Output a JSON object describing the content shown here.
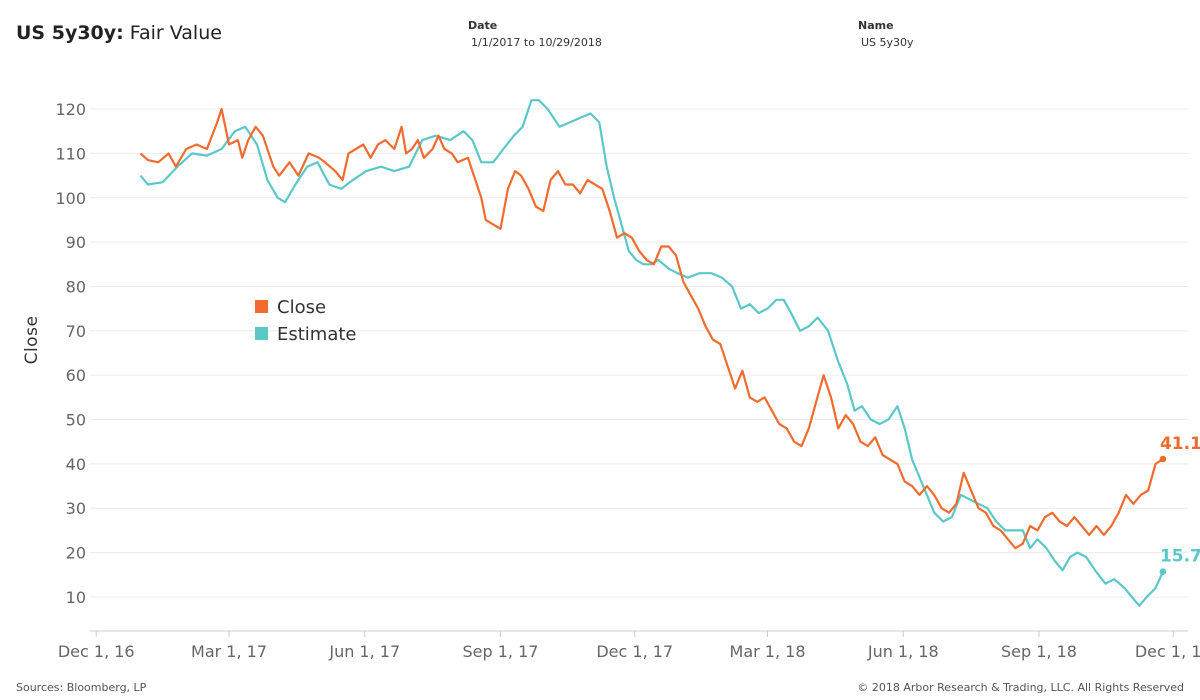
{
  "header": {
    "title_bold": "US 5y30y:",
    "title_rest": " Fair Value",
    "date_filter": {
      "label": "Date",
      "value": "1/1/2017 to 10/29/2018"
    },
    "name_filter": {
      "label": "Name",
      "value": "US 5y30y"
    }
  },
  "footer": {
    "sources": "Sources: Bloomberg, LP",
    "copyright": "© 2018 Arbor Research & Trading, LLC. All Rights Reserved"
  },
  "colors": {
    "close": "#F26B2E",
    "estimate": "#5BC8C8",
    "grid": "#ececec",
    "axis": "#cccccc"
  },
  "chart_data": {
    "type": "line",
    "title": "",
    "xlabel": "",
    "ylabel": "Close",
    "ylim": [
      3,
      127
    ],
    "xlim": [
      "2016-11-20",
      "2018-12-11"
    ],
    "yticks": [
      10,
      20,
      30,
      40,
      50,
      60,
      70,
      80,
      90,
      100,
      110,
      120
    ],
    "xticks": [
      {
        "date": "2016-12-01",
        "label": "Dec 1, 16"
      },
      {
        "date": "2017-03-01",
        "label": "Mar 1, 17"
      },
      {
        "date": "2017-06-01",
        "label": "Jun 1, 17"
      },
      {
        "date": "2017-09-01",
        "label": "Sep 1, 17"
      },
      {
        "date": "2017-12-01",
        "label": "Dec 1, 17"
      },
      {
        "date": "2018-03-01",
        "label": "Mar 1, 18"
      },
      {
        "date": "2018-06-01",
        "label": "Jun 1, 18"
      },
      {
        "date": "2018-09-01",
        "label": "Sep 1, 18"
      },
      {
        "date": "2018-12-01",
        "label": "Dec 1, 18"
      }
    ],
    "legend_position": "left-middle",
    "grid": true,
    "series": [
      {
        "name": "Close",
        "color": "#F26B2E",
        "end_label": "41.1",
        "points": [
          [
            "2016-12-31",
            110
          ],
          [
            "2017-01-05",
            108.5
          ],
          [
            "2017-01-12",
            108
          ],
          [
            "2017-01-19",
            110
          ],
          [
            "2017-01-24",
            107
          ],
          [
            "2017-01-31",
            111
          ],
          [
            "2017-02-07",
            112
          ],
          [
            "2017-02-14",
            111
          ],
          [
            "2017-02-21",
            117
          ],
          [
            "2017-02-24",
            120
          ],
          [
            "2017-03-01",
            112
          ],
          [
            "2017-03-07",
            113
          ],
          [
            "2017-03-10",
            109
          ],
          [
            "2017-03-14",
            113
          ],
          [
            "2017-03-19",
            116
          ],
          [
            "2017-03-24",
            114
          ],
          [
            "2017-03-31",
            107
          ],
          [
            "2017-04-04",
            105
          ],
          [
            "2017-04-11",
            108
          ],
          [
            "2017-04-17",
            105
          ],
          [
            "2017-04-24",
            110
          ],
          [
            "2017-05-01",
            109
          ],
          [
            "2017-05-05",
            108
          ],
          [
            "2017-05-12",
            106
          ],
          [
            "2017-05-17",
            104
          ],
          [
            "2017-05-21",
            110
          ],
          [
            "2017-05-26",
            111
          ],
          [
            "2017-05-31",
            112
          ],
          [
            "2017-06-05",
            109
          ],
          [
            "2017-06-10",
            112
          ],
          [
            "2017-06-15",
            113
          ],
          [
            "2017-06-21",
            111
          ],
          [
            "2017-06-26",
            116
          ],
          [
            "2017-06-29",
            110
          ],
          [
            "2017-07-03",
            111
          ],
          [
            "2017-07-07",
            113
          ],
          [
            "2017-07-11",
            109
          ],
          [
            "2017-07-17",
            111
          ],
          [
            "2017-07-21",
            114
          ],
          [
            "2017-07-25",
            111
          ],
          [
            "2017-07-30",
            110
          ],
          [
            "2017-08-03",
            108
          ],
          [
            "2017-08-10",
            109
          ],
          [
            "2017-08-14",
            105
          ],
          [
            "2017-08-19",
            100
          ],
          [
            "2017-08-22",
            95
          ],
          [
            "2017-08-27",
            94
          ],
          [
            "2017-09-01",
            93
          ],
          [
            "2017-09-06",
            102
          ],
          [
            "2017-09-11",
            106
          ],
          [
            "2017-09-15",
            105
          ],
          [
            "2017-09-20",
            102
          ],
          [
            "2017-09-25",
            98
          ],
          [
            "2017-09-30",
            97
          ],
          [
            "2017-10-05",
            104
          ],
          [
            "2017-10-10",
            106
          ],
          [
            "2017-10-15",
            103
          ],
          [
            "2017-10-20",
            103
          ],
          [
            "2017-10-25",
            101
          ],
          [
            "2017-10-30",
            104
          ],
          [
            "2017-11-04",
            103
          ],
          [
            "2017-11-09",
            102
          ],
          [
            "2017-11-14",
            97
          ],
          [
            "2017-11-19",
            91
          ],
          [
            "2017-11-24",
            92
          ],
          [
            "2017-11-29",
            91
          ],
          [
            "2017-12-04",
            88
          ],
          [
            "2017-12-09",
            86
          ],
          [
            "2017-12-14",
            85
          ],
          [
            "2017-12-19",
            89
          ],
          [
            "2017-12-24",
            89
          ],
          [
            "2017-12-29",
            87
          ],
          [
            "2018-01-03",
            81
          ],
          [
            "2018-01-08",
            78
          ],
          [
            "2018-01-13",
            75
          ],
          [
            "2018-01-18",
            71
          ],
          [
            "2018-01-23",
            68
          ],
          [
            "2018-01-28",
            67
          ],
          [
            "2018-02-02",
            62
          ],
          [
            "2018-02-07",
            57
          ],
          [
            "2018-02-12",
            61
          ],
          [
            "2018-02-17",
            55
          ],
          [
            "2018-02-22",
            54
          ],
          [
            "2018-02-27",
            55
          ],
          [
            "2018-03-04",
            52
          ],
          [
            "2018-03-09",
            49
          ],
          [
            "2018-03-14",
            48
          ],
          [
            "2018-03-19",
            45
          ],
          [
            "2018-03-24",
            44
          ],
          [
            "2018-03-29",
            48
          ],
          [
            "2018-04-03",
            54
          ],
          [
            "2018-04-08",
            60
          ],
          [
            "2018-04-13",
            55
          ],
          [
            "2018-04-18",
            48
          ],
          [
            "2018-04-23",
            51
          ],
          [
            "2018-04-28",
            49
          ],
          [
            "2018-05-03",
            45
          ],
          [
            "2018-05-08",
            44
          ],
          [
            "2018-05-13",
            46
          ],
          [
            "2018-05-18",
            42
          ],
          [
            "2018-05-23",
            41
          ],
          [
            "2018-05-28",
            40
          ],
          [
            "2018-06-02",
            36
          ],
          [
            "2018-06-07",
            35
          ],
          [
            "2018-06-12",
            33
          ],
          [
            "2018-06-17",
            35
          ],
          [
            "2018-06-22",
            33
          ],
          [
            "2018-06-27",
            30
          ],
          [
            "2018-07-02",
            29
          ],
          [
            "2018-07-07",
            31
          ],
          [
            "2018-07-12",
            38
          ],
          [
            "2018-07-17",
            34
          ],
          [
            "2018-07-22",
            30
          ],
          [
            "2018-07-27",
            29
          ],
          [
            "2018-08-01",
            26
          ],
          [
            "2018-08-06",
            25
          ],
          [
            "2018-08-11",
            23
          ],
          [
            "2018-08-16",
            21
          ],
          [
            "2018-08-21",
            22
          ],
          [
            "2018-08-26",
            26
          ],
          [
            "2018-08-31",
            25
          ],
          [
            "2018-09-05",
            28
          ],
          [
            "2018-09-10",
            29
          ],
          [
            "2018-09-15",
            27
          ],
          [
            "2018-09-20",
            26
          ],
          [
            "2018-09-25",
            28
          ],
          [
            "2018-09-30",
            26
          ],
          [
            "2018-10-05",
            24
          ],
          [
            "2018-10-10",
            26
          ],
          [
            "2018-10-15",
            24
          ],
          [
            "2018-10-20",
            26
          ],
          [
            "2018-10-25",
            29
          ],
          [
            "2018-10-30",
            33
          ],
          [
            "2018-11-04",
            31
          ],
          [
            "2018-11-09",
            33
          ],
          [
            "2018-11-14",
            34
          ],
          [
            "2018-11-19",
            40
          ],
          [
            "2018-11-24",
            41.1
          ]
        ]
      },
      {
        "name": "Estimate",
        "color": "#5BC8C8",
        "end_label": "15.7",
        "points": [
          [
            "2016-12-31",
            105
          ],
          [
            "2017-01-05",
            103
          ],
          [
            "2017-01-15",
            103.5
          ],
          [
            "2017-01-25",
            107
          ],
          [
            "2017-02-04",
            110
          ],
          [
            "2017-02-14",
            109.5
          ],
          [
            "2017-02-24",
            111
          ],
          [
            "2017-03-05",
            115
          ],
          [
            "2017-03-12",
            116
          ],
          [
            "2017-03-20",
            112
          ],
          [
            "2017-03-27",
            104
          ],
          [
            "2017-04-03",
            100
          ],
          [
            "2017-04-08",
            99
          ],
          [
            "2017-04-15",
            103
          ],
          [
            "2017-04-23",
            107
          ],
          [
            "2017-04-30",
            108
          ],
          [
            "2017-05-08",
            103
          ],
          [
            "2017-05-16",
            102
          ],
          [
            "2017-05-24",
            104
          ],
          [
            "2017-06-02",
            106
          ],
          [
            "2017-06-12",
            107
          ],
          [
            "2017-06-21",
            106
          ],
          [
            "2017-07-01",
            107
          ],
          [
            "2017-07-10",
            113
          ],
          [
            "2017-07-19",
            114
          ],
          [
            "2017-07-29",
            113
          ],
          [
            "2017-08-07",
            115
          ],
          [
            "2017-08-13",
            113
          ],
          [
            "2017-08-19",
            108
          ],
          [
            "2017-08-27",
            108
          ],
          [
            "2017-09-03",
            111
          ],
          [
            "2017-09-10",
            114
          ],
          [
            "2017-09-16",
            116
          ],
          [
            "2017-09-22",
            122
          ],
          [
            "2017-09-27",
            122
          ],
          [
            "2017-10-03",
            120
          ],
          [
            "2017-10-11",
            116
          ],
          [
            "2017-10-18",
            117
          ],
          [
            "2017-10-25",
            118
          ],
          [
            "2017-11-01",
            119
          ],
          [
            "2017-11-07",
            117
          ],
          [
            "2017-11-12",
            107
          ],
          [
            "2017-11-17",
            100
          ],
          [
            "2017-11-22",
            94
          ],
          [
            "2017-11-27",
            88
          ],
          [
            "2017-12-02",
            86
          ],
          [
            "2017-12-07",
            85
          ],
          [
            "2017-12-12",
            85
          ],
          [
            "2017-12-17",
            86
          ],
          [
            "2017-12-24",
            84
          ],
          [
            "2017-12-30",
            83
          ],
          [
            "2018-01-06",
            82
          ],
          [
            "2018-01-14",
            83
          ],
          [
            "2018-01-22",
            83
          ],
          [
            "2018-01-29",
            82
          ],
          [
            "2018-02-05",
            80
          ],
          [
            "2018-02-11",
            75
          ],
          [
            "2018-02-17",
            76
          ],
          [
            "2018-02-23",
            74
          ],
          [
            "2018-03-01",
            75
          ],
          [
            "2018-03-07",
            77
          ],
          [
            "2018-03-12",
            77
          ],
          [
            "2018-03-17",
            74
          ],
          [
            "2018-03-23",
            70
          ],
          [
            "2018-03-29",
            71
          ],
          [
            "2018-04-04",
            73
          ],
          [
            "2018-04-11",
            70
          ],
          [
            "2018-04-18",
            63
          ],
          [
            "2018-04-24",
            58
          ],
          [
            "2018-04-29",
            52
          ],
          [
            "2018-05-04",
            53
          ],
          [
            "2018-05-10",
            50
          ],
          [
            "2018-05-16",
            49
          ],
          [
            "2018-05-22",
            50
          ],
          [
            "2018-05-28",
            53
          ],
          [
            "2018-06-02",
            48
          ],
          [
            "2018-06-07",
            41
          ],
          [
            "2018-06-12",
            37
          ],
          [
            "2018-06-17",
            33
          ],
          [
            "2018-06-22",
            29
          ],
          [
            "2018-06-28",
            27
          ],
          [
            "2018-07-04",
            28
          ],
          [
            "2018-07-10",
            33
          ],
          [
            "2018-07-16",
            32
          ],
          [
            "2018-07-22",
            31
          ],
          [
            "2018-07-28",
            30
          ],
          [
            "2018-08-03",
            27
          ],
          [
            "2018-08-09",
            25
          ],
          [
            "2018-08-15",
            25
          ],
          [
            "2018-08-21",
            25
          ],
          [
            "2018-08-26",
            21
          ],
          [
            "2018-08-31",
            23
          ],
          [
            "2018-09-06",
            21
          ],
          [
            "2018-09-12",
            18
          ],
          [
            "2018-09-17",
            16
          ],
          [
            "2018-09-22",
            19
          ],
          [
            "2018-09-27",
            20
          ],
          [
            "2018-10-03",
            19
          ],
          [
            "2018-10-09",
            16
          ],
          [
            "2018-10-16",
            13
          ],
          [
            "2018-10-22",
            14
          ],
          [
            "2018-10-29",
            12
          ],
          [
            "2018-11-03",
            10
          ],
          [
            "2018-11-08",
            8
          ],
          [
            "2018-11-13",
            10
          ],
          [
            "2018-11-19",
            12
          ],
          [
            "2018-11-24",
            15.7
          ]
        ]
      }
    ]
  }
}
